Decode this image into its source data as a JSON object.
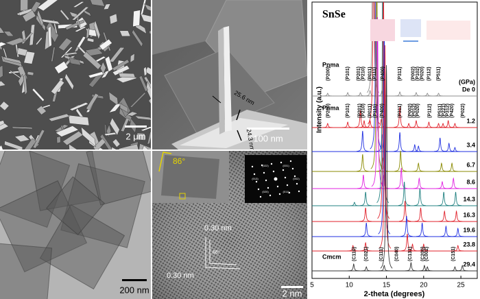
{
  "panels": {
    "sem_flakes": {
      "scale_bar": "2 μm"
    },
    "sem_plate": {
      "scale_bar": "100 nm",
      "thickness_labels": [
        "25.6 nm",
        "24.3 nm"
      ]
    },
    "tem": {
      "scale_bar": "200 nm"
    },
    "hrtem": {
      "scale_bar": "2 nm",
      "angle": "86°",
      "lattice_spacings": [
        "0.30 nm",
        "0.30 nm"
      ],
      "lattice_angle": "86°",
      "saed_spots": [
        "(002)",
        "(011)",
        "(020)",
        "(013)",
        "(022)",
        "(031)"
      ]
    }
  },
  "chart_data": {
    "type": "line",
    "title": "SnSe",
    "xlabel": "2-theta (degrees)",
    "ylabel": "Intensity (a.u.)",
    "legend_title": "(GPa)",
    "xlim": [
      5,
      27.2
    ],
    "xticks": [
      5,
      10,
      15,
      20,
      25
    ],
    "series": [
      {
        "name": "De 0",
        "color": "#8c8c8c",
        "phase": "Pnma",
        "x": [
          7.1,
          9.8,
          11.5,
          12.8,
          13.2,
          14.4,
          16.8,
          19.0,
          20.5,
          22.0
        ],
        "values": [
          4,
          5,
          5,
          8,
          400,
          8,
          6,
          5,
          4,
          4
        ],
        "peak_labels": [
          {
            "x": 7.2,
            "label": "(P200)"
          },
          {
            "x": 9.8,
            "label": "(P101)"
          },
          {
            "x": 11.3,
            "label": "(P201)"
          },
          {
            "x": 11.9,
            "label": "(P210)"
          },
          {
            "x": 12.8,
            "label": "(P011)"
          },
          {
            "x": 13.4,
            "label": "(P111)"
          },
          {
            "x": 14.5,
            "label": "(P400)"
          },
          {
            "x": 16.8,
            "label": "(P311)"
          },
          {
            "x": 18.6,
            "label": "(P002)"
          },
          {
            "x": 19.2,
            "label": "(P102)"
          },
          {
            "x": 19.8,
            "label": "(P020)"
          },
          {
            "x": 20.7,
            "label": "(P112)"
          },
          {
            "x": 22.0,
            "label": "(P511)"
          }
        ]
      },
      {
        "name": "1.2",
        "color": "#e0202a",
        "phase": "Pnma",
        "x": [
          7.1,
          9.8,
          11.5,
          12.0,
          12.8,
          13.3,
          14.3,
          16.8,
          18.0,
          19.0,
          20.7,
          22.0,
          22.6,
          23.3,
          24.2
        ],
        "values": [
          6,
          8,
          25,
          10,
          10,
          400,
          12,
          30,
          6,
          10,
          8,
          6,
          6,
          10,
          6
        ],
        "peak_labels": [
          {
            "x": 7.2,
            "label": "(P200)"
          },
          {
            "x": 9.8,
            "label": "(P101)"
          },
          {
            "x": 11.4,
            "label": "(P201)"
          },
          {
            "x": 11.9,
            "label": "(P210)"
          },
          {
            "x": 12.8,
            "label": "(P011)"
          },
          {
            "x": 13.5,
            "label": "(P111)"
          },
          {
            "x": 14.4,
            "label": "(P400)"
          },
          {
            "x": 16.8,
            "label": "(P311)"
          },
          {
            "x": 18.2,
            "label": "(P002)"
          },
          {
            "x": 18.7,
            "label": "(P012)"
          },
          {
            "x": 19.2,
            "label": "(P020)"
          },
          {
            "x": 20.8,
            "label": "(P112)"
          },
          {
            "x": 22.2,
            "label": "(P511)"
          },
          {
            "x": 22.7,
            "label": "(P221)"
          },
          {
            "x": 23.2,
            "label": "(P312)"
          },
          {
            "x": 23.8,
            "label": "(P420)"
          },
          {
            "x": 25.3,
            "label": "(P022)"
          }
        ]
      },
      {
        "name": "3.4",
        "color": "#1f2fe0",
        "x": [
          11.8,
          13.6,
          14.4,
          16.8,
          18.8,
          19.3,
          22.2,
          23.4,
          24.2
        ],
        "values": [
          30,
          300,
          25,
          28,
          10,
          8,
          20,
          12,
          6
        ]
      },
      {
        "name": "6.7",
        "color": "#8a8a00",
        "x": [
          11.8,
          13.7,
          14.5,
          16.9,
          19.3,
          22.4,
          23.8
        ],
        "values": [
          25,
          300,
          20,
          30,
          12,
          12,
          12
        ]
      },
      {
        "name": "8.6",
        "color": "#e020e0",
        "x": [
          11.9,
          13.8,
          14.6,
          17.0,
          19.4,
          22.5,
          24.0
        ],
        "values": [
          20,
          250,
          20,
          30,
          15,
          10,
          15
        ]
      },
      {
        "name": "14.3",
        "color": "#208080",
        "x": [
          10.7,
          12.2,
          14.5,
          17.4,
          19.5,
          22.7,
          24.3
        ],
        "values": [
          5,
          20,
          350,
          35,
          25,
          20,
          20
        ]
      },
      {
        "name": "16.3",
        "color": "#e0202a",
        "x": [
          12.2,
          14.6,
          17.5,
          19.6,
          22.8,
          24.4
        ],
        "values": [
          20,
          350,
          30,
          20,
          15,
          15
        ]
      },
      {
        "name": "19.6",
        "color": "#1f2fe0",
        "x": [
          12.3,
          14.7,
          17.7,
          19.8,
          23.0,
          24.6
        ],
        "values": [
          20,
          300,
          30,
          20,
          15,
          12
        ]
      },
      {
        "name": "23.8",
        "color": "#e0202a",
        "x": [
          10.5,
          12.2,
          14.8,
          17.8,
          18.5,
          20.0,
          24.6
        ],
        "values": [
          8,
          12,
          300,
          25,
          10,
          10,
          8
        ]
      },
      {
        "name": "29.4",
        "color": "#333333",
        "phase": "Cmcm",
        "x": [
          10.6,
          12.3,
          14.7,
          15.0,
          18.3,
          20.1,
          20.5,
          24.2,
          25.2
        ],
        "values": [
          10,
          6,
          8,
          300,
          12,
          8,
          6,
          6,
          8
        ],
        "peak_labels": [
          {
            "x": 10.7,
            "label": "(C110)"
          },
          {
            "x": 12.3,
            "label": "(C021)"
          },
          {
            "x": 14.3,
            "label": "(C111)"
          },
          {
            "x": 16.4,
            "label": "(C040)"
          },
          {
            "x": 18.2,
            "label": "(C131)"
          },
          {
            "x": 19.9,
            "label": "(C200)"
          },
          {
            "x": 20.4,
            "label": "(C002)"
          },
          {
            "x": 24.0,
            "label": "(C151)"
          }
        ]
      }
    ]
  }
}
